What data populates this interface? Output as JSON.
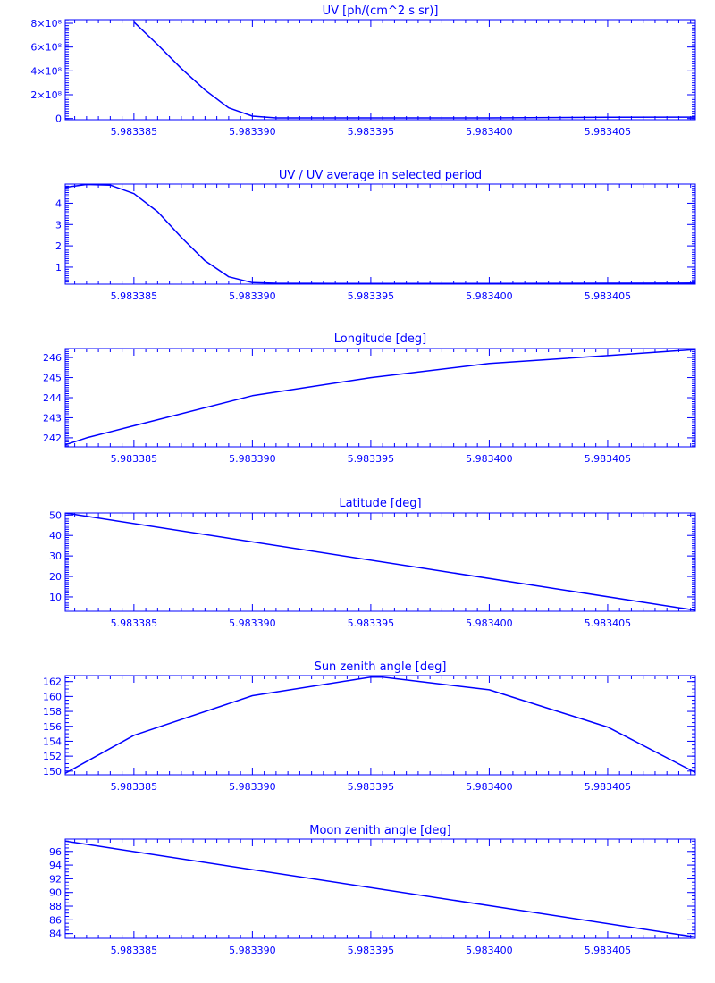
{
  "colors": {
    "line": "#0000ff",
    "background": "#ffffff"
  },
  "x_axis": {
    "range": [
      5.9833821,
      5.9834087
    ],
    "major_ticks": [
      5.983385,
      5.98339,
      5.983395,
      5.9834,
      5.983405
    ],
    "tick_labels": [
      "5.983385",
      "5.983390",
      "5.983395",
      "5.983400",
      "5.983405"
    ]
  },
  "chart_data": [
    {
      "type": "line",
      "title": "UV [ph/(cm^2 s sr)]",
      "ylim": [
        -10000000.0,
        830000000.0
      ],
      "yticks": [
        0,
        200000000.0,
        400000000.0,
        600000000.0,
        800000000.0
      ],
      "ytick_labels": [
        "0",
        "2×10⁸",
        "4×10⁸",
        "6×10⁸",
        "8×10⁸"
      ],
      "y_minor_step": 20000000.0,
      "series": [
        {
          "x": [
            5.983385,
            5.983386,
            5.983387,
            5.983388,
            5.983389,
            5.98339,
            5.983391,
            5.983395,
            5.9834,
            5.983405,
            5.9834087
          ],
          "values": [
            810000000.0,
            620000000.0,
            420000000.0,
            240000000.0,
            90000000.0,
            20000000.0,
            5000000.0,
            5000000.0,
            5000000.0,
            10000000.0,
            12000000.0
          ]
        }
      ]
    },
    {
      "type": "line",
      "title": "UV / UV average in selected period",
      "ylim": [
        0.2,
        4.9
      ],
      "yticks": [
        1,
        2,
        3,
        4
      ],
      "ytick_labels": [
        "1",
        "2",
        "3",
        "4"
      ],
      "y_minor_step": 0.1,
      "series": [
        {
          "x": [
            5.9833821,
            5.983383,
            5.983384,
            5.983385,
            5.983386,
            5.983387,
            5.983388,
            5.983389,
            5.98339,
            5.983391,
            5.983395,
            5.9834,
            5.983405,
            5.9834087
          ],
          "values": [
            4.75,
            4.88,
            4.85,
            4.45,
            3.6,
            2.4,
            1.3,
            0.55,
            0.27,
            0.24,
            0.23,
            0.23,
            0.24,
            0.25
          ]
        }
      ]
    },
    {
      "type": "line",
      "title": "Longitude [deg]",
      "ylim": [
        241.55,
        246.45
      ],
      "yticks": [
        242,
        243,
        244,
        245,
        246
      ],
      "ytick_labels": [
        "242",
        "243",
        "244",
        "245",
        "246"
      ],
      "y_minor_step": 0.1,
      "series": [
        {
          "x": [
            5.9833821,
            5.983383,
            5.983385,
            5.98339,
            5.983395,
            5.9834,
            5.983405,
            5.9834087
          ],
          "values": [
            241.65,
            242.0,
            242.6,
            244.1,
            245.0,
            245.7,
            246.1,
            246.4
          ]
        }
      ]
    },
    {
      "type": "line",
      "title": "Latitude [deg]",
      "ylim": [
        3,
        51
      ],
      "yticks": [
        10,
        20,
        30,
        40,
        50
      ],
      "ytick_labels": [
        "10",
        "20",
        "30",
        "40",
        "50"
      ],
      "y_minor_step": 1,
      "series": [
        {
          "x": [
            5.9833821,
            5.9834087
          ],
          "values": [
            51,
            3.5
          ]
        }
      ]
    },
    {
      "type": "line",
      "title": "Sun zenith angle [deg]",
      "ylim": [
        149.5,
        162.8
      ],
      "yticks": [
        150,
        152,
        154,
        156,
        158,
        160,
        162
      ],
      "ytick_labels": [
        "150",
        "152",
        "154",
        "156",
        "158",
        "160",
        "162"
      ],
      "y_minor_step": 0.5,
      "series": [
        {
          "x": [
            5.9833821,
            5.983385,
            5.98339,
            5.983395,
            5.9833955,
            5.9834,
            5.983405,
            5.9834087
          ],
          "values": [
            149.7,
            154.8,
            160.1,
            162.6,
            162.6,
            160.9,
            155.9,
            149.8
          ]
        }
      ]
    },
    {
      "type": "line",
      "title": "Moon zenith angle [deg]",
      "ylim": [
        83.3,
        97.8
      ],
      "yticks": [
        84,
        86,
        88,
        90,
        92,
        94,
        96
      ],
      "ytick_labels": [
        "84",
        "86",
        "88",
        "90",
        "92",
        "94",
        "96"
      ],
      "y_minor_step": 0.5,
      "series": [
        {
          "x": [
            5.9833821,
            5.9834087
          ],
          "values": [
            97.5,
            83.5
          ]
        }
      ]
    }
  ]
}
